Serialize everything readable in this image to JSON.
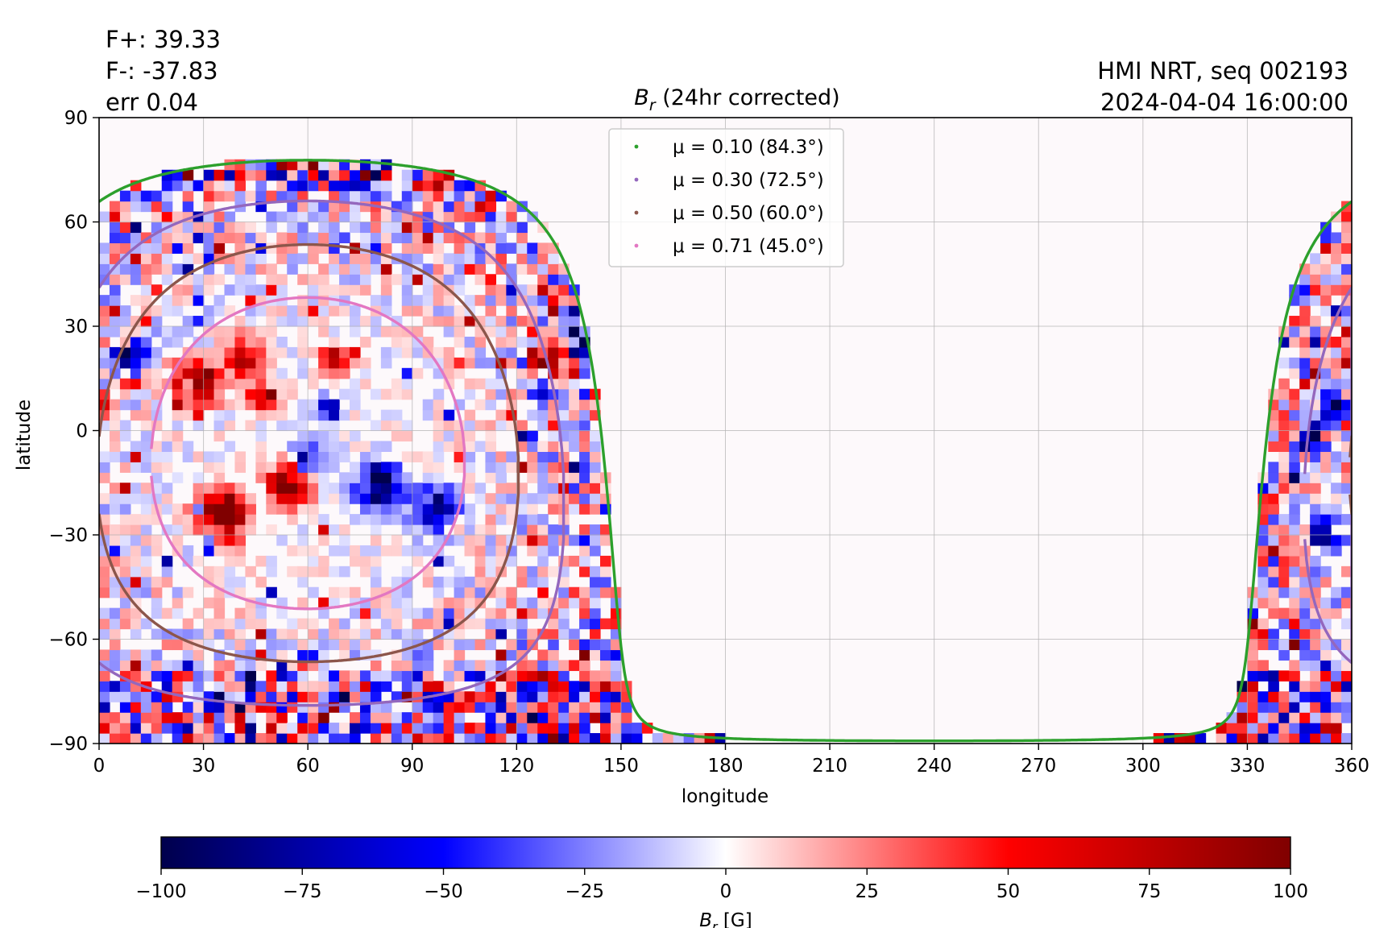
{
  "flux": {
    "f_plus": "F+: 39.33",
    "f_minus": "F-: -37.83",
    "err": "err 0.04"
  },
  "meta": {
    "instrument": "HMI NRT, seq 002193",
    "datetime": "2024-04-04 16:00:00"
  },
  "chart_data": {
    "type": "heatmap",
    "title": {
      "base": "B",
      "sub": "r",
      "rest": " (24hr corrected)"
    },
    "xlabel": "longitude",
    "ylabel": "latitude",
    "xlim": [
      0,
      360
    ],
    "ylim": [
      -90,
      90
    ],
    "x_ticks": [
      0,
      30,
      60,
      90,
      120,
      150,
      180,
      210,
      240,
      270,
      300,
      330,
      360
    ],
    "y_ticks": [
      -90,
      -60,
      -30,
      0,
      30,
      60,
      90
    ],
    "y_tick_labels": [
      "−90",
      "−60",
      "−30",
      "0",
      "30",
      "60",
      "90"
    ],
    "grid": true,
    "legend_position": "top-center",
    "disk_center": {
      "lon": 60,
      "lat": -6.5
    },
    "series": [
      {
        "label": "μ = 0.10 (84.3°)",
        "mu": 0.1,
        "angle_deg": 84.3,
        "color": "#2ca02c"
      },
      {
        "label": "μ = 0.30 (72.5°)",
        "mu": 0.3,
        "angle_deg": 72.5,
        "color": "#9467bd"
      },
      {
        "label": "μ = 0.50 (60.0°)",
        "mu": 0.5,
        "angle_deg": 60.0,
        "color": "#8c564b"
      },
      {
        "label": "μ = 0.71 (45.0°)",
        "mu": 0.71,
        "angle_deg": 45.0,
        "color": "#e377c2"
      }
    ],
    "magnetic_regions": [
      {
        "lon": 28,
        "lat": 14,
        "sign": 1,
        "strength": 1.0,
        "size": 6
      },
      {
        "lon": 42,
        "lat": 21,
        "sign": 1,
        "strength": 0.9,
        "size": 5
      },
      {
        "lon": 8,
        "lat": 22,
        "sign": -1,
        "strength": 0.8,
        "size": 5
      },
      {
        "lon": 1,
        "lat": 8,
        "sign": 1,
        "strength": 0.9,
        "size": 3
      },
      {
        "lon": 48,
        "lat": 10,
        "sign": 1,
        "strength": 0.8,
        "size": 4
      },
      {
        "lon": 66,
        "lat": 6,
        "sign": -1,
        "strength": 0.9,
        "size": 3
      },
      {
        "lon": 68,
        "lat": 20,
        "sign": 1,
        "strength": 0.7,
        "size": 4
      },
      {
        "lon": 35,
        "lat": -24,
        "sign": 1,
        "strength": 1.0,
        "size": 7
      },
      {
        "lon": 55,
        "lat": -15,
        "sign": 1,
        "strength": 0.9,
        "size": 6
      },
      {
        "lon": 80,
        "lat": -16,
        "sign": -1,
        "strength": 1.0,
        "size": 6
      },
      {
        "lon": 96,
        "lat": -22,
        "sign": -1,
        "strength": 0.8,
        "size": 6
      },
      {
        "lon": 60,
        "lat": -8,
        "sign": -1,
        "strength": 0.6,
        "size": 5
      },
      {
        "lon": 128,
        "lat": 20,
        "sign": 1,
        "strength": 0.9,
        "size": 5
      },
      {
        "lon": 140,
        "lat": 24,
        "sign": -1,
        "strength": 0.9,
        "size": 4
      },
      {
        "lon": 126,
        "lat": 12,
        "sign": -1,
        "strength": 0.7,
        "size": 3
      },
      {
        "lon": 356,
        "lat": 8,
        "sign": -1,
        "strength": 1.0,
        "size": 4
      },
      {
        "lon": 350,
        "lat": 0,
        "sign": -1,
        "strength": 0.7,
        "size": 5
      },
      {
        "lon": 352,
        "lat": -30,
        "sign": -1,
        "strength": 0.6,
        "size": 5
      },
      {
        "lon": 358,
        "lat": 26,
        "sign": 1,
        "strength": 0.6,
        "size": 4
      }
    ],
    "colorbar": {
      "label": {
        "base": "B",
        "sub": "r",
        "unit": " [G]"
      },
      "range": [
        -100,
        100
      ],
      "ticks": [
        -100,
        -75,
        -50,
        -25,
        0,
        25,
        50,
        75,
        100
      ],
      "tick_labels": [
        "−100",
        "−75",
        "−50",
        "−25",
        "0",
        "25",
        "50",
        "75",
        "100"
      ],
      "colormap": "seismic",
      "colors": [
        "#00004c",
        "#0000ff",
        "#ffffff",
        "#ff0000",
        "#800000"
      ]
    }
  }
}
